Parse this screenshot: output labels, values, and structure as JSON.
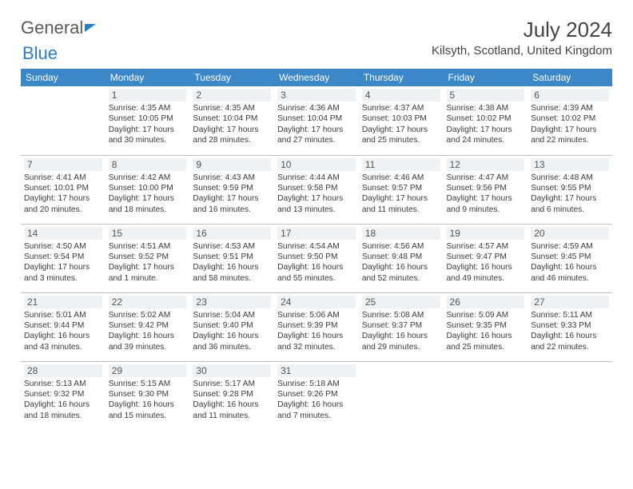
{
  "brand": {
    "part1": "General",
    "part2": "Blue"
  },
  "title": "July 2024",
  "location": "Kilsyth, Scotland, United Kingdom",
  "colors": {
    "header_bg": "#3b87c8",
    "header_text": "#ffffff",
    "daynum_bg": "#eef2f5",
    "border": "#bfbfbf",
    "brand_blue": "#2a7ec5",
    "text": "#3a3a3a"
  },
  "weekdays": [
    "Sunday",
    "Monday",
    "Tuesday",
    "Wednesday",
    "Thursday",
    "Friday",
    "Saturday"
  ],
  "weeks": [
    [
      null,
      {
        "n": "1",
        "sr": "4:35 AM",
        "ss": "10:05 PM",
        "dl": "17 hours and 30 minutes."
      },
      {
        "n": "2",
        "sr": "4:35 AM",
        "ss": "10:04 PM",
        "dl": "17 hours and 28 minutes."
      },
      {
        "n": "3",
        "sr": "4:36 AM",
        "ss": "10:04 PM",
        "dl": "17 hours and 27 minutes."
      },
      {
        "n": "4",
        "sr": "4:37 AM",
        "ss": "10:03 PM",
        "dl": "17 hours and 25 minutes."
      },
      {
        "n": "5",
        "sr": "4:38 AM",
        "ss": "10:02 PM",
        "dl": "17 hours and 24 minutes."
      },
      {
        "n": "6",
        "sr": "4:39 AM",
        "ss": "10:02 PM",
        "dl": "17 hours and 22 minutes."
      }
    ],
    [
      {
        "n": "7",
        "sr": "4:41 AM",
        "ss": "10:01 PM",
        "dl": "17 hours and 20 minutes."
      },
      {
        "n": "8",
        "sr": "4:42 AM",
        "ss": "10:00 PM",
        "dl": "17 hours and 18 minutes."
      },
      {
        "n": "9",
        "sr": "4:43 AM",
        "ss": "9:59 PM",
        "dl": "17 hours and 16 minutes."
      },
      {
        "n": "10",
        "sr": "4:44 AM",
        "ss": "9:58 PM",
        "dl": "17 hours and 13 minutes."
      },
      {
        "n": "11",
        "sr": "4:46 AM",
        "ss": "9:57 PM",
        "dl": "17 hours and 11 minutes."
      },
      {
        "n": "12",
        "sr": "4:47 AM",
        "ss": "9:56 PM",
        "dl": "17 hours and 9 minutes."
      },
      {
        "n": "13",
        "sr": "4:48 AM",
        "ss": "9:55 PM",
        "dl": "17 hours and 6 minutes."
      }
    ],
    [
      {
        "n": "14",
        "sr": "4:50 AM",
        "ss": "9:54 PM",
        "dl": "17 hours and 3 minutes."
      },
      {
        "n": "15",
        "sr": "4:51 AM",
        "ss": "9:52 PM",
        "dl": "17 hours and 1 minute."
      },
      {
        "n": "16",
        "sr": "4:53 AM",
        "ss": "9:51 PM",
        "dl": "16 hours and 58 minutes."
      },
      {
        "n": "17",
        "sr": "4:54 AM",
        "ss": "9:50 PM",
        "dl": "16 hours and 55 minutes."
      },
      {
        "n": "18",
        "sr": "4:56 AM",
        "ss": "9:48 PM",
        "dl": "16 hours and 52 minutes."
      },
      {
        "n": "19",
        "sr": "4:57 AM",
        "ss": "9:47 PM",
        "dl": "16 hours and 49 minutes."
      },
      {
        "n": "20",
        "sr": "4:59 AM",
        "ss": "9:45 PM",
        "dl": "16 hours and 46 minutes."
      }
    ],
    [
      {
        "n": "21",
        "sr": "5:01 AM",
        "ss": "9:44 PM",
        "dl": "16 hours and 43 minutes."
      },
      {
        "n": "22",
        "sr": "5:02 AM",
        "ss": "9:42 PM",
        "dl": "16 hours and 39 minutes."
      },
      {
        "n": "23",
        "sr": "5:04 AM",
        "ss": "9:40 PM",
        "dl": "16 hours and 36 minutes."
      },
      {
        "n": "24",
        "sr": "5:06 AM",
        "ss": "9:39 PM",
        "dl": "16 hours and 32 minutes."
      },
      {
        "n": "25",
        "sr": "5:08 AM",
        "ss": "9:37 PM",
        "dl": "16 hours and 29 minutes."
      },
      {
        "n": "26",
        "sr": "5:09 AM",
        "ss": "9:35 PM",
        "dl": "16 hours and 25 minutes."
      },
      {
        "n": "27",
        "sr": "5:11 AM",
        "ss": "9:33 PM",
        "dl": "16 hours and 22 minutes."
      }
    ],
    [
      {
        "n": "28",
        "sr": "5:13 AM",
        "ss": "9:32 PM",
        "dl": "16 hours and 18 minutes."
      },
      {
        "n": "29",
        "sr": "5:15 AM",
        "ss": "9:30 PM",
        "dl": "16 hours and 15 minutes."
      },
      {
        "n": "30",
        "sr": "5:17 AM",
        "ss": "9:28 PM",
        "dl": "16 hours and 11 minutes."
      },
      {
        "n": "31",
        "sr": "5:18 AM",
        "ss": "9:26 PM",
        "dl": "16 hours and 7 minutes."
      },
      null,
      null,
      null
    ]
  ],
  "labels": {
    "sunrise": "Sunrise: ",
    "sunset": "Sunset: ",
    "daylight": "Daylight: "
  }
}
